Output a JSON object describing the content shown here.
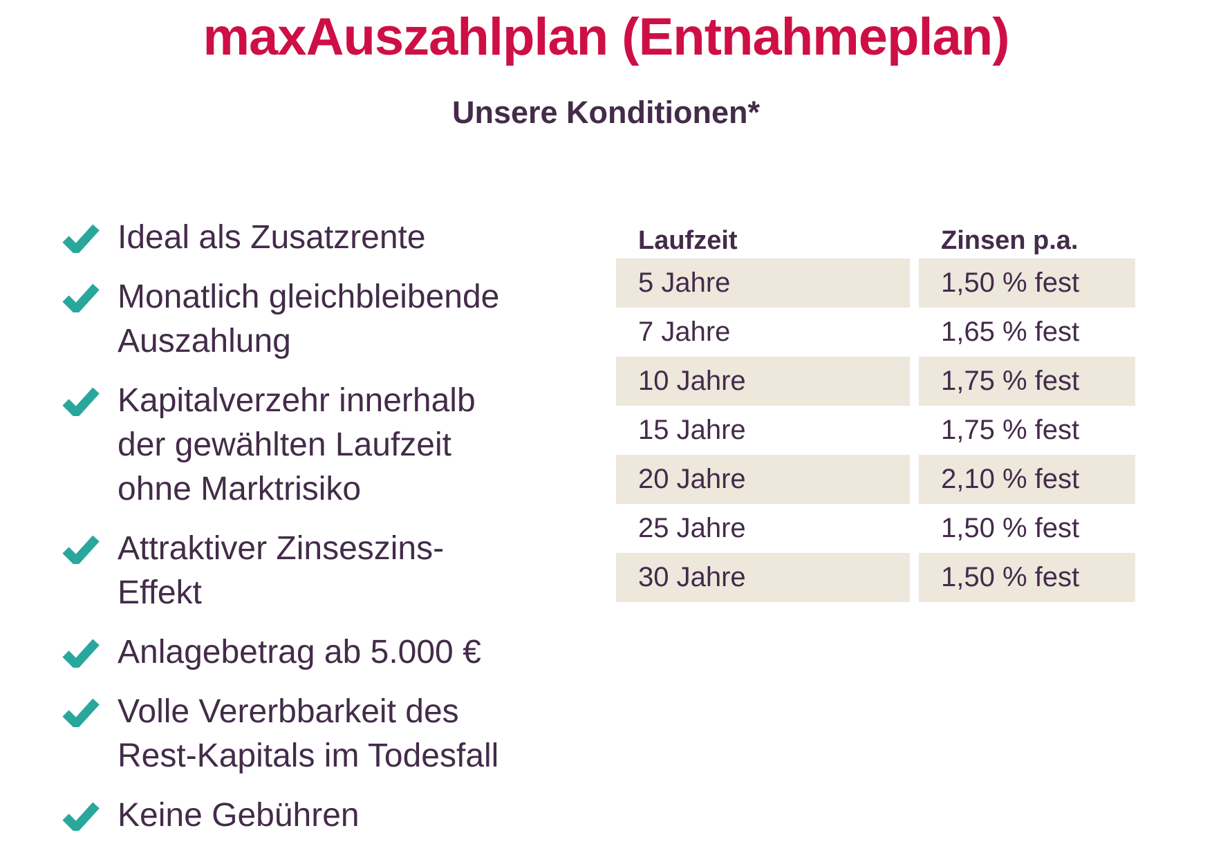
{
  "page": {
    "title": "maxAuszahlplan (Entnahmeplan)",
    "subtitle": "Unsere Konditionen*"
  },
  "colors": {
    "title": "#CE0F45",
    "text": "#432B49",
    "check": "#29A79C",
    "row_beige": "#EDE7DC"
  },
  "benefits": [
    {
      "lines": [
        "Ideal als Zusatzrente"
      ]
    },
    {
      "lines": [
        "Monatlich gleichbleibende",
        "Auszahlung"
      ]
    },
    {
      "lines": [
        "Kapitalverzehr innerhalb",
        "der gewählten Laufzeit",
        "ohne Marktrisiko"
      ]
    },
    {
      "lines": [
        "Attraktiver Zinseszins-",
        "Effekt"
      ]
    },
    {
      "lines": [
        "Anlagebetrag ab 5.000 €"
      ]
    },
    {
      "lines": [
        "Volle Vererbbarkeit des",
        "Rest-Kapitals im Todesfall"
      ]
    },
    {
      "lines": [
        "Keine Gebühren"
      ]
    }
  ],
  "table": {
    "headers": [
      "Laufzeit",
      "Zinsen p.a."
    ],
    "rows": [
      [
        "5 Jahre",
        "1,50 % fest"
      ],
      [
        "7 Jahre",
        "1,65 % fest"
      ],
      [
        "10 Jahre",
        "1,75 % fest"
      ],
      [
        "15 Jahre",
        "1,75 % fest"
      ],
      [
        "20 Jahre",
        "2,10 % fest"
      ],
      [
        "25 Jahre",
        "1,50 % fest"
      ],
      [
        "30 Jahre",
        "1,50 % fest"
      ]
    ]
  }
}
